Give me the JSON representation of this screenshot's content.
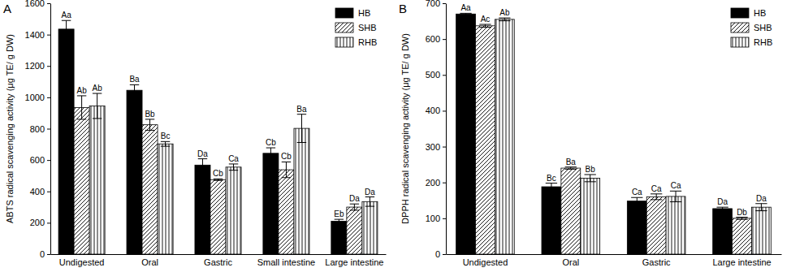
{
  "chart_data": [
    {
      "type": "bar",
      "title": "A",
      "y_label": "ABTS radical scavenging activity (μg TE/ g DW)",
      "categories": [
        "Undigested",
        "Oral",
        "Gastric",
        "Small intestine",
        "Large intestine"
      ],
      "series": [
        {
          "name": "HB",
          "color": "#000000",
          "values": [
            1435,
            1045,
            568,
            643,
            210
          ],
          "errors": [
            55,
            35,
            40,
            35,
            12
          ],
          "annotations": [
            "Aa",
            "Ba",
            "Da",
            "Cb",
            "Eb"
          ]
        },
        {
          "name": "SHB",
          "color": "#000000",
          "values": [
            935,
            825,
            475,
            538,
            300
          ],
          "errors": [
            75,
            35,
            5,
            50,
            20
          ],
          "annotations": [
            "Ab",
            "Bb",
            "Cb",
            "Cb",
            "Da"
          ]
        },
        {
          "name": "RHB",
          "color": "#000000",
          "values": [
            945,
            703,
            555,
            802,
            335
          ],
          "errors": [
            80,
            15,
            20,
            90,
            30
          ],
          "annotations": [
            "Ab",
            "Bc",
            "Ca",
            "Ba",
            "Da"
          ]
        }
      ],
      "ylim": [
        0,
        1600
      ],
      "yticks": [
        0,
        200,
        400,
        600,
        800,
        1000,
        1200,
        1400,
        1600
      ],
      "grid": false,
      "legend": "upper right"
    },
    {
      "type": "bar",
      "title": "B",
      "y_label": "DPPH radical scavenging activity (μg TE/ g DW)",
      "categories": [
        "Undigested",
        "Oral",
        "Gastric",
        "Large intestine"
      ],
      "series": [
        {
          "name": "HB",
          "color": "#000000",
          "values": [
            670,
            188,
            148,
            127
          ],
          "errors": [
            2,
            10,
            10,
            4
          ],
          "annotations": [
            "Aa",
            "Bc",
            "Ca",
            "Da"
          ]
        },
        {
          "name": "SHB",
          "color": "#000000",
          "values": [
            637,
            240,
            160,
            100
          ],
          "errors": [
            4,
            3,
            8,
            3
          ],
          "annotations": [
            "Ac",
            "Ba",
            "Ca",
            "Db"
          ]
        },
        {
          "name": "RHB",
          "color": "#000000",
          "values": [
            655,
            212,
            161,
            131
          ],
          "errors": [
            4,
            10,
            15,
            10
          ],
          "annotations": [
            "Ab",
            "Bb",
            "Ca",
            "Da"
          ]
        }
      ],
      "ylim": [
        0,
        700
      ],
      "yticks": [
        0,
        100,
        200,
        300,
        400,
        500,
        600,
        700
      ],
      "grid": false,
      "legend": "upper right"
    }
  ]
}
